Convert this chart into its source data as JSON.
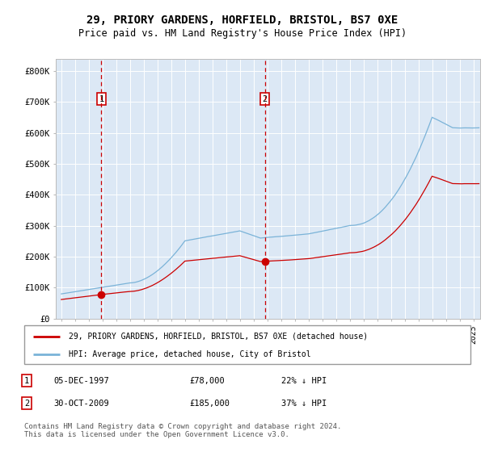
{
  "title": "29, PRIORY GARDENS, HORFIELD, BRISTOL, BS7 0XE",
  "subtitle": "Price paid vs. HM Land Registry's House Price Index (HPI)",
  "title_fontsize": 10,
  "subtitle_fontsize": 8.5,
  "ylabel_ticks": [
    "£0",
    "£100K",
    "£200K",
    "£300K",
    "£400K",
    "£500K",
    "£600K",
    "£700K",
    "£800K"
  ],
  "ytick_vals": [
    0,
    100000,
    200000,
    300000,
    400000,
    500000,
    600000,
    700000,
    800000
  ],
  "ylim": [
    0,
    840000
  ],
  "xlim_start": 1994.6,
  "xlim_end": 2025.5,
  "hpi_color": "#7ab3d8",
  "price_color": "#cc0000",
  "marker1_date_x": 1997.92,
  "marker1_price": 78000,
  "marker2_date_x": 2009.83,
  "marker2_price": 185000,
  "legend_line1": "29, PRIORY GARDENS, HORFIELD, BRISTOL, BS7 0XE (detached house)",
  "legend_line2": "HPI: Average price, detached house, City of Bristol",
  "table_row1": [
    "1",
    "05-DEC-1997",
    "£78,000",
    "22% ↓ HPI"
  ],
  "table_row2": [
    "2",
    "30-OCT-2009",
    "£185,000",
    "37% ↓ HPI"
  ],
  "footnote": "Contains HM Land Registry data © Crown copyright and database right 2024.\nThis data is licensed under the Open Government Licence v3.0.",
  "background_color": "#dce8f5",
  "fig_bg_color": "#ffffff"
}
